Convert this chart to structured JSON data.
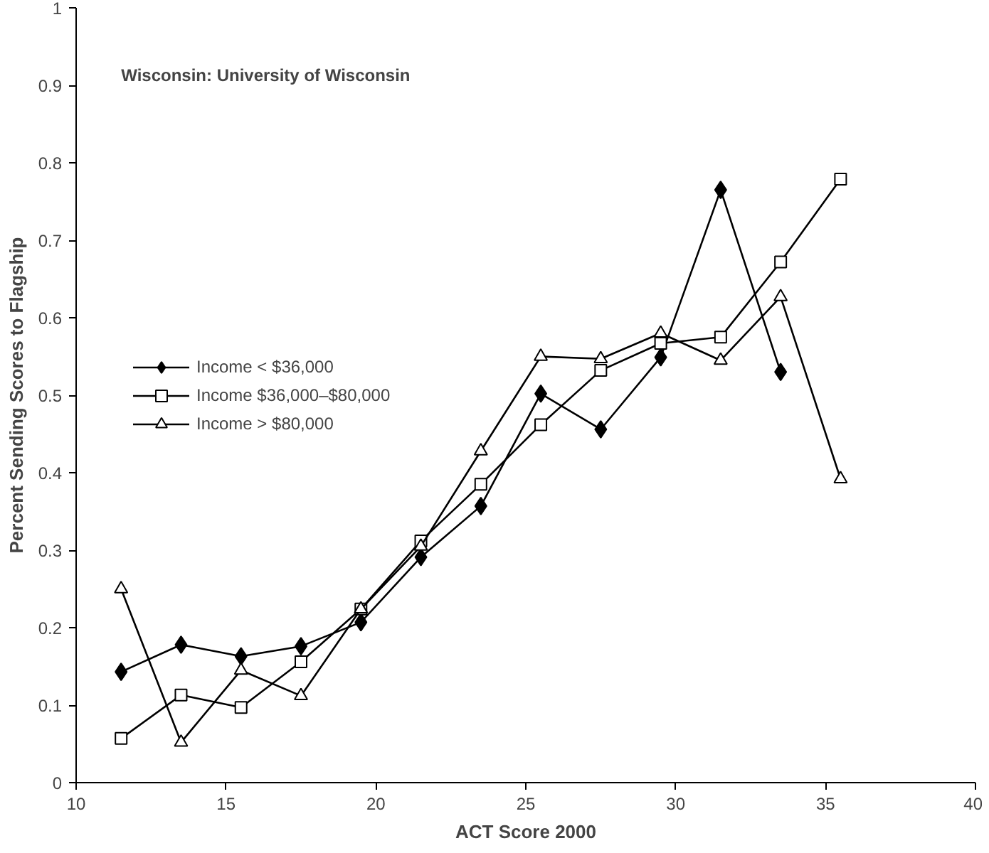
{
  "chart_data": {
    "type": "line",
    "xlabel": "ACT Score 2000",
    "ylabel": "Percent Sending Scores to Flagship",
    "annotations": [
      "Wisconsin: University of Wisconsin"
    ],
    "xlim": [
      10,
      40
    ],
    "xticks": [
      10,
      15,
      20,
      25,
      30,
      35,
      40
    ],
    "ylim": [
      0,
      1
    ],
    "yticks": [
      0,
      0.1,
      0.2,
      0.3,
      0.4,
      0.5,
      0.6,
      0.7,
      0.8,
      0.9,
      1
    ],
    "grid": false,
    "legend": "left",
    "series": [
      {
        "name": "Income < $36,000",
        "color": "#000000",
        "marker": "diamond",
        "x": [
          11.5,
          13.5,
          15.5,
          17.5,
          19.5,
          21.5,
          23.5,
          25.5,
          27.5,
          29.5,
          31.5,
          33.5
        ],
        "values": [
          0.143,
          0.178,
          0.163,
          0.176,
          0.207,
          0.291,
          0.357,
          0.502,
          0.456,
          0.549,
          0.765,
          0.53
        ]
      },
      {
        "name": "Income $36,000–$80,000",
        "color": "#000000",
        "marker": "square",
        "x": [
          11.5,
          13.5,
          15.5,
          17.5,
          19.5,
          21.5,
          23.5,
          25.5,
          27.5,
          29.5,
          31.5,
          33.5,
          35.5
        ],
        "values": [
          0.057,
          0.113,
          0.097,
          0.156,
          0.224,
          0.312,
          0.385,
          0.462,
          0.532,
          0.567,
          0.575,
          0.672,
          0.779
        ]
      },
      {
        "name": "Income > $80,000",
        "color": "#000000",
        "marker": "triangle",
        "x": [
          11.5,
          13.5,
          15.5,
          17.5,
          19.5,
          21.5,
          23.5,
          25.5,
          27.5,
          29.5,
          31.5,
          33.5,
          35.5
        ],
        "values": [
          0.25,
          0.052,
          0.145,
          0.112,
          0.224,
          0.305,
          0.428,
          0.55,
          0.547,
          0.58,
          0.545,
          0.627,
          0.392
        ]
      }
    ]
  }
}
